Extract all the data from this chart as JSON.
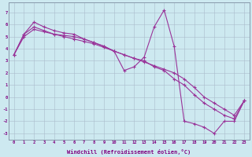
{
  "xlabel": "Windchill (Refroidissement éolien,°C)",
  "bg_color": "#cde9f0",
  "line_color": "#993399",
  "grid_color": "#aabbcc",
  "series1_x": [
    0,
    1,
    2,
    3,
    4,
    5,
    6,
    7,
    8,
    9,
    10,
    11,
    12,
    13,
    14,
    15,
    16,
    17,
    18,
    19,
    20,
    21,
    22,
    23
  ],
  "series1_y": [
    3.5,
    5.2,
    6.2,
    5.8,
    5.5,
    5.3,
    5.2,
    4.8,
    4.5,
    4.2,
    3.8,
    2.2,
    2.5,
    3.3,
    5.8,
    7.2,
    4.2,
    -2.0,
    -2.2,
    -2.5,
    -3.0,
    -2.0,
    -2.0,
    -0.3
  ],
  "series2_x": [
    0,
    1,
    2,
    3,
    4,
    5,
    6,
    7,
    8,
    9,
    10,
    11,
    12,
    13,
    14,
    15,
    16,
    17,
    18,
    19,
    20,
    21,
    22,
    23
  ],
  "series2_y": [
    3.5,
    5.2,
    5.8,
    5.5,
    5.2,
    5.1,
    5.0,
    4.8,
    4.5,
    4.2,
    3.8,
    3.5,
    3.2,
    3.0,
    2.5,
    2.2,
    1.5,
    1.0,
    0.2,
    -0.5,
    -1.0,
    -1.5,
    -1.8,
    -0.3
  ],
  "series3_x": [
    0,
    1,
    2,
    3,
    4,
    5,
    6,
    7,
    8,
    9,
    10,
    11,
    12,
    13,
    14,
    15,
    16,
    17,
    18,
    19,
    20,
    21,
    22,
    23
  ],
  "series3_y": [
    3.5,
    5.0,
    5.6,
    5.4,
    5.2,
    5.0,
    4.8,
    4.6,
    4.4,
    4.1,
    3.8,
    3.5,
    3.2,
    2.9,
    2.6,
    2.3,
    2.0,
    1.5,
    0.8,
    0.0,
    -0.5,
    -1.0,
    -1.5,
    -0.3
  ],
  "xlim": [
    -0.5,
    23.5
  ],
  "ylim": [
    -3.5,
    7.8
  ],
  "yticks": [
    -3,
    -2,
    -1,
    0,
    1,
    2,
    3,
    4,
    5,
    6,
    7
  ],
  "xticks": [
    0,
    1,
    2,
    3,
    4,
    5,
    6,
    7,
    8,
    9,
    10,
    11,
    12,
    13,
    14,
    15,
    16,
    17,
    18,
    19,
    20,
    21,
    22,
    23
  ]
}
